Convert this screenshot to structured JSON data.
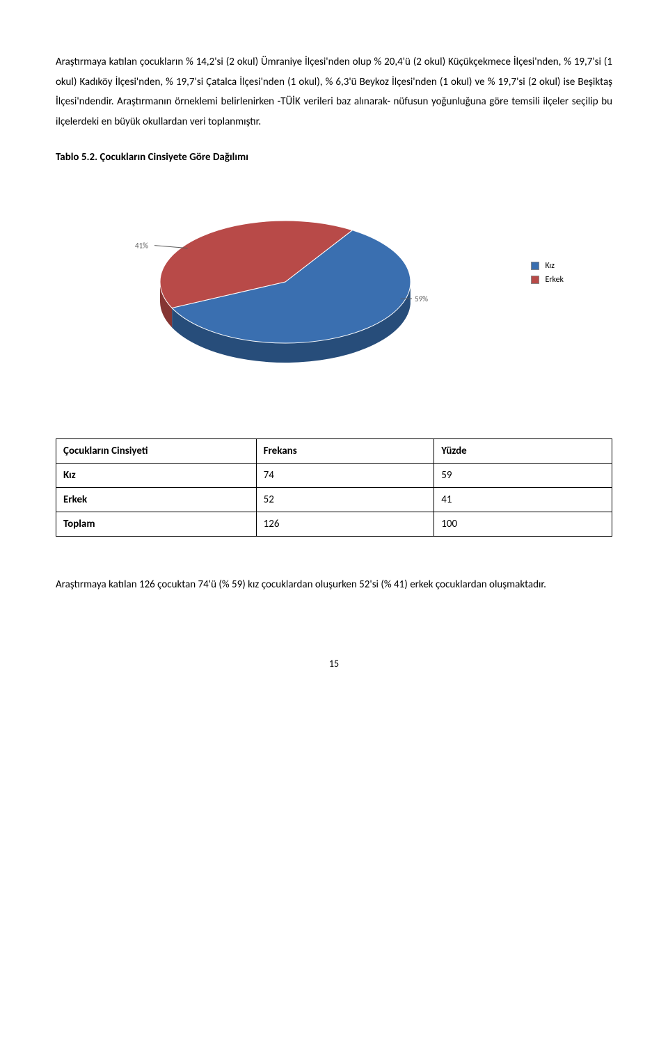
{
  "paragraph1": "Araştırmaya katılan çocukların % 14,2'si (2 okul) Ümraniye İlçesi'nden olup % 20,4'ü (2 okul) Küçükçekmece İlçesi'nden, % 19,7'si (1 okul) Kadıköy İlçesi'nden, % 19,7'si Çatalca İlçesi'nden (1 okul), % 6,3'ü Beykoz İlçesi'nden (1 okul) ve % 19,7'si (2 okul) ise Beşiktaş İlçesi'ndendir. Araştırmanın örneklemi belirlenirken -TÜİK verileri baz alınarak- nüfusun yoğunluğuna göre temsili ilçeler seçilip bu ilçelerdeki en büyük okullardan veri toplanmıştır.",
  "table_title": "Tablo 5.2. Çocukların Cinsiyete Göre Dağılımı",
  "pie": {
    "slices": [
      {
        "label": "Kız",
        "value": 59,
        "pct_text": "59%",
        "top_color": "#3a6fb0",
        "side_color": "#274d7a"
      },
      {
        "label": "Erkek",
        "value": 41,
        "pct_text": "41%",
        "top_color": "#b84a48",
        "side_color": "#853533"
      }
    ],
    "background": "#ffffff",
    "label_color": "#5a5a5a",
    "label_fontsize": 11
  },
  "legend": {
    "items": [
      {
        "label": "Kız",
        "color": "#3a6fb0"
      },
      {
        "label": "Erkek",
        "color": "#b84a48"
      }
    ]
  },
  "table": {
    "columns": [
      "Çocukların Cinsiyeti",
      "Frekans",
      "Yüzde"
    ],
    "rows": [
      {
        "label": "Kız",
        "freq": "74",
        "pct": "59"
      },
      {
        "label": "Erkek",
        "freq": "52",
        "pct": "41"
      },
      {
        "label": "Toplam",
        "freq": "126",
        "pct": "100"
      }
    ]
  },
  "paragraph2": "Araştırmaya katılan 126 çocuktan 74'ü (% 59) kız çocuklardan oluşurken 52'si (% 41) erkek çocuklardan oluşmaktadır.",
  "page_number": "15"
}
